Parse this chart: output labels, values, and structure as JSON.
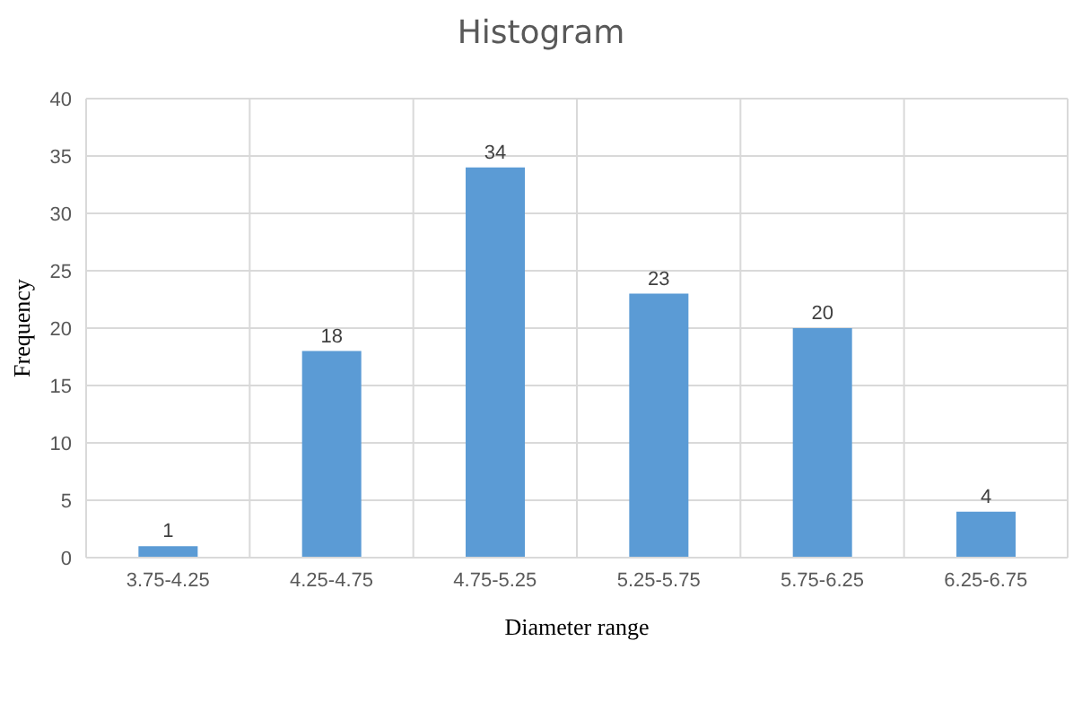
{
  "chart_data": {
    "type": "bar",
    "title": "Histogram",
    "xlabel": "Diameter range",
    "ylabel": "Frequency",
    "categories": [
      "3.75-4.25",
      "4.25-4.75",
      "4.75-5.25",
      "5.25-5.75",
      "5.75-6.25",
      "6.25-6.75"
    ],
    "values": [
      1,
      18,
      34,
      23,
      20,
      4
    ],
    "color": "#5b9bd5",
    "ylim": [
      0,
      40
    ],
    "yticks": [
      0,
      5,
      10,
      15,
      20,
      25,
      30,
      35,
      40
    ],
    "grid": true,
    "data_labels": true
  }
}
